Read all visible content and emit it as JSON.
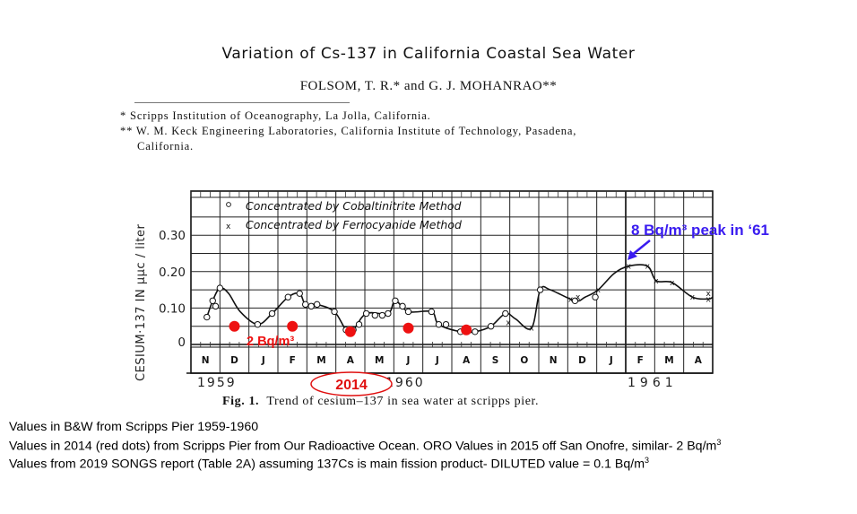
{
  "slide": {
    "title": "Variation of Cs-137 in California Coastal Sea Water",
    "authors": "FOLSOM, T. R.* and G. J. MOHANRAO**",
    "affiliations": [
      "* Scripps Institution of Oceanography, La Jolla, California.",
      "** W. M. Keck Engineering Laboratories, California Institute of Technology, Pasadena,",
      "California."
    ],
    "caption_bold": "Fig. 1.",
    "caption_text": "Trend of cesium–137 in sea water at scripps pier.",
    "notes": [
      {
        "text": "Values in B&W from Scripps Pier 1959-1960",
        "sup": ""
      },
      {
        "text": "Values in 2014 (red dots) from Scripps Pier from Our Radioactive Ocean.  ORO Values in 2015 off San Onofre, similar- 2 Bq/m",
        "sup": "3"
      },
      {
        "text": "Values from 2019 SONGS report (Table 2A) assuming 137Cs is main fission product- DILUTED value = 0.1 Bq/m",
        "sup": "3"
      }
    ]
  },
  "chart_data": {
    "type": "line",
    "title": "Fig. 1. Trend of cesium-137 in sea water at scripps pier.",
    "xlabel": "",
    "ylabel": "CESIUM·137 IN μμc / liter",
    "ylim": [
      -0.02,
      0.38
    ],
    "yticks": [
      0,
      0.1,
      0.2,
      0.3
    ],
    "ytick_labels": [
      "0",
      "0.10",
      "0.20",
      "0.30"
    ],
    "grid": true,
    "months": [
      "N",
      "D",
      "J",
      "F",
      "M",
      "A",
      "M",
      "J",
      "J",
      "A",
      "S",
      "O",
      "N",
      "D",
      "J",
      "F",
      "M",
      "A"
    ],
    "year_labels": [
      {
        "label": "1959",
        "month_index": 0
      },
      {
        "label": "1960",
        "month_index": 6.5
      },
      {
        "label": "1961",
        "month_index": 15
      }
    ],
    "legend": {
      "position": "top-left",
      "entries": [
        {
          "marker": "circle",
          "label": "Concentrated by Cobaltinitrite Method"
        },
        {
          "marker": "x",
          "label": "Concentrated by Ferrocyanide Method"
        }
      ]
    },
    "series": [
      {
        "name": "Concentrated by Cobaltinitrite Method",
        "marker": "circle",
        "points": [
          [
            0.55,
            0.075
          ],
          [
            0.75,
            0.12
          ],
          [
            0.85,
            0.105
          ],
          [
            1.0,
            0.155
          ],
          [
            2.3,
            0.055
          ],
          [
            2.8,
            0.085
          ],
          [
            3.35,
            0.13
          ],
          [
            3.75,
            0.14
          ],
          [
            3.95,
            0.11
          ],
          [
            4.15,
            0.105
          ],
          [
            4.35,
            0.11
          ],
          [
            4.95,
            0.09
          ],
          [
            5.35,
            0.04
          ],
          [
            5.6,
            0.04
          ],
          [
            5.8,
            0.055
          ],
          [
            6.05,
            0.085
          ],
          [
            6.35,
            0.08
          ],
          [
            6.6,
            0.08
          ],
          [
            6.8,
            0.085
          ],
          [
            7.05,
            0.12
          ],
          [
            7.3,
            0.105
          ],
          [
            7.5,
            0.09
          ],
          [
            8.3,
            0.09
          ],
          [
            8.55,
            0.055
          ],
          [
            8.8,
            0.055
          ],
          [
            9.3,
            0.035
          ],
          [
            9.8,
            0.035
          ],
          [
            10.35,
            0.05
          ],
          [
            10.85,
            0.085
          ],
          [
            12.05,
            0.15
          ],
          [
            13.25,
            0.12
          ],
          [
            13.95,
            0.13
          ]
        ]
      },
      {
        "name": "Concentrated by Ferrocyanide Method",
        "marker": "x",
        "points": [
          [
            10.95,
            0.06
          ],
          [
            11.75,
            0.045
          ],
          [
            13.1,
            0.125
          ],
          [
            13.35,
            0.13
          ],
          [
            14.05,
            0.15
          ],
          [
            15.1,
            0.215
          ],
          [
            15.75,
            0.215
          ],
          [
            16.05,
            0.175
          ],
          [
            16.6,
            0.17
          ],
          [
            17.3,
            0.13
          ],
          [
            17.85,
            0.14
          ],
          [
            17.85,
            0.125
          ]
        ]
      },
      {
        "name": "2014 Our Radioactive Ocean (red dots)",
        "marker": "dot",
        "color": "#ee1111",
        "points": [
          [
            1.5,
            0.05
          ],
          [
            3.5,
            0.05
          ],
          [
            5.5,
            0.035
          ],
          [
            7.5,
            0.045
          ],
          [
            9.5,
            0.04
          ]
        ]
      }
    ],
    "trend_curve": [
      [
        0.55,
        0.075
      ],
      [
        0.75,
        0.12
      ],
      [
        1.0,
        0.155
      ],
      [
        1.3,
        0.14
      ],
      [
        1.7,
        0.09
      ],
      [
        2.3,
        0.055
      ],
      [
        2.8,
        0.085
      ],
      [
        3.35,
        0.13
      ],
      [
        3.75,
        0.14
      ],
      [
        3.95,
        0.11
      ],
      [
        4.35,
        0.11
      ],
      [
        4.95,
        0.09
      ],
      [
        5.35,
        0.04
      ],
      [
        5.6,
        0.04
      ],
      [
        6.05,
        0.085
      ],
      [
        6.8,
        0.085
      ],
      [
        7.05,
        0.12
      ],
      [
        7.5,
        0.09
      ],
      [
        8.3,
        0.09
      ],
      [
        8.55,
        0.055
      ],
      [
        9.3,
        0.035
      ],
      [
        9.8,
        0.035
      ],
      [
        10.35,
        0.05
      ],
      [
        10.85,
        0.085
      ],
      [
        11.2,
        0.07
      ],
      [
        11.75,
        0.045
      ],
      [
        12.05,
        0.15
      ],
      [
        12.4,
        0.15
      ],
      [
        13.25,
        0.12
      ],
      [
        13.6,
        0.13
      ],
      [
        14.05,
        0.15
      ],
      [
        14.6,
        0.195
      ],
      [
        15.1,
        0.215
      ],
      [
        15.75,
        0.215
      ],
      [
        16.05,
        0.175
      ],
      [
        16.6,
        0.17
      ],
      [
        17.3,
        0.13
      ],
      [
        17.85,
        0.125
      ],
      [
        18.0,
        0.13
      ]
    ],
    "annotations": [
      {
        "text": "2 Bq/m³",
        "color": "#ee1111",
        "near": "2014 red dots"
      },
      {
        "text": "2014",
        "color": "#ee1111",
        "shape": "ellipse",
        "near": "M-A 1960 axis label"
      },
      {
        "text": "8 Bq/m³  peak in ‘61",
        "color": "#3a1cf0",
        "arrow_to": "Jan-Feb 1961 peak"
      }
    ]
  }
}
